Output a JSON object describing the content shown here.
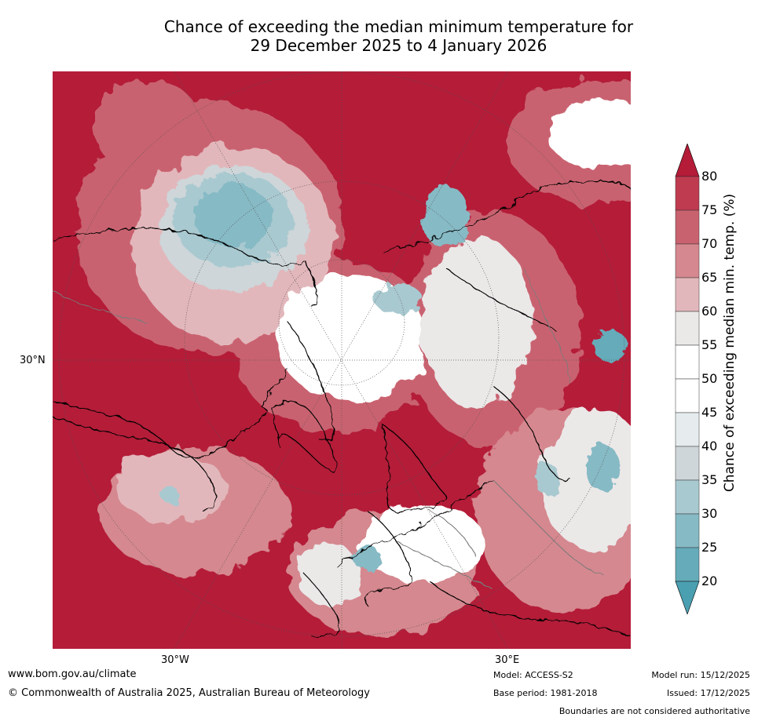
{
  "title": {
    "line1": "Chance of exceeding the median minimum temperature for",
    "line2": "29 December 2025 to 4 January 2026"
  },
  "map": {
    "lat_label": "30°N",
    "lon_labels": [
      "30°W",
      "30°E"
    ]
  },
  "colorbar": {
    "label": "Chance of exceeding median min. temp. (%)",
    "ticks": [
      "80",
      "75",
      "70",
      "65",
      "60",
      "55",
      "50",
      "45",
      "40",
      "35",
      "30",
      "25",
      "20"
    ],
    "colors": {
      "above_80": "#b41c38",
      "75_80": "#bf3b50",
      "70_75": "#c9626f",
      "65_70": "#d5888f",
      "60_65": "#e2b7bb",
      "55_60": "#ebe8e8",
      "50_55": "#ffffff",
      "45_50": "#ffffff",
      "40_45": "#e6ecee",
      "35_40": "#ced6d9",
      "30_35": "#a9c9d0",
      "25_30": "#86bac5",
      "20_25": "#65abb9",
      "below_20": "#4aa0b1"
    }
  },
  "footer": {
    "website": "www.bom.gov.au/climate",
    "copyright": "© Commonwealth of Australia 2025, Australian Bureau of Meteorology",
    "model": "Model: ACCESS-S2",
    "base_period": "Base period: 1981-2018",
    "model_run": "Model run: 15/12/2025",
    "issued": "Issued: 17/12/2025",
    "disclaimer": "Boundaries are not considered authoritative"
  }
}
